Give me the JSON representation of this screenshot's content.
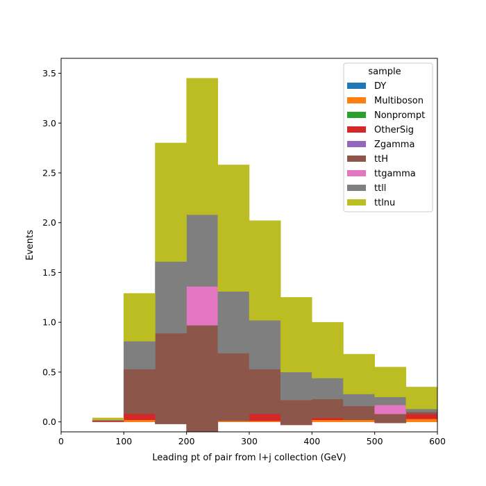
{
  "chart_data": {
    "type": "bar",
    "stacked": true,
    "bin_edges": [
      50,
      100,
      150,
      200,
      250,
      300,
      350,
      400,
      450,
      500,
      550,
      600
    ],
    "xlabel": "Leading pt of pair from l+j collection (GeV)",
    "ylabel": "Events",
    "xlim": [
      0,
      600
    ],
    "ylim": [
      -0.1,
      3.65
    ],
    "xticks": [
      0,
      100,
      200,
      300,
      400,
      500,
      600
    ],
    "yticks": [
      0.0,
      0.5,
      1.0,
      1.5,
      2.0,
      2.5,
      3.0,
      3.5
    ],
    "grid": false,
    "legend": {
      "title": "sample",
      "position": "top-right"
    },
    "series": [
      {
        "name": "DY",
        "color": "#1f77b4",
        "values": [
          0,
          0,
          0,
          0,
          0,
          0,
          0,
          0,
          0,
          0,
          0
        ]
      },
      {
        "name": "Multiboson",
        "color": "#ff7f0e",
        "values": [
          0,
          0.02,
          0,
          0,
          0.02,
          0.01,
          0,
          0.02,
          0.02,
          0.01,
          0.03
        ]
      },
      {
        "name": "Nonprompt",
        "color": "#2ca02c",
        "values": [
          0,
          0,
          0,
          0,
          0,
          0,
          0,
          0,
          0,
          0,
          0
        ]
      },
      {
        "name": "OtherSig",
        "color": "#d62728",
        "values": [
          0.01,
          0.06,
          -0.02,
          -0.1,
          -0.01,
          0.07,
          -0.03,
          0.02,
          0,
          -0.02,
          0.05
        ]
      },
      {
        "name": "Zgamma",
        "color": "#9467bd",
        "values": [
          0,
          0,
          0,
          0,
          0,
          0,
          0,
          0,
          0,
          0,
          0
        ]
      },
      {
        "name": "ttH",
        "color": "#8c564b",
        "values": [
          0,
          0.45,
          0.91,
          1.07,
          0.68,
          0.45,
          0.25,
          0.19,
          0.14,
          0.09,
          0.02
        ]
      },
      {
        "name": "ttgamma",
        "color": "#e377c2",
        "values": [
          0,
          0,
          0,
          0.39,
          0,
          0,
          0,
          0,
          0,
          0.09,
          0
        ]
      },
      {
        "name": "ttll",
        "color": "#7f7f7f",
        "values": [
          0.01,
          0.28,
          0.72,
          0.72,
          0.62,
          0.49,
          0.28,
          0.21,
          0.12,
          0.08,
          0.03
        ]
      },
      {
        "name": "ttlnu",
        "color": "#bcbd22",
        "values": [
          0.02,
          0.48,
          1.19,
          1.37,
          1.27,
          1.0,
          0.75,
          0.56,
          0.4,
          0.3,
          0.22
        ]
      }
    ]
  }
}
